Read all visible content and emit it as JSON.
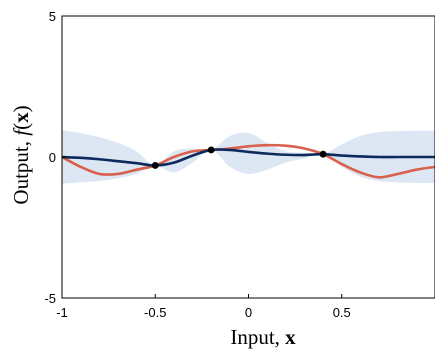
{
  "chart_data": {
    "type": "line",
    "title": "",
    "xlabel": {
      "text": "Input, ",
      "symbol": "x"
    },
    "ylabel": {
      "text": "Output, ",
      "symbol": "f",
      "arg": "x"
    },
    "xlim": [
      -1,
      1
    ],
    "ylim": [
      -5,
      5
    ],
    "xticks": [
      -1,
      -0.5,
      0,
      0.5
    ],
    "xtick_labels": [
      "-1",
      "-0.5",
      "0",
      "0.5"
    ],
    "yticks": [
      -5,
      0,
      5
    ],
    "ytick_labels": [
      "-5",
      "0",
      "5"
    ],
    "grid": false,
    "legend": "none",
    "colors": {
      "mean": "#0d2a5c",
      "sample": "#d9604c",
      "band": "#dce7f3",
      "observation": "#000000"
    },
    "observations": {
      "x": [
        -0.5,
        -0.2,
        0.4
      ],
      "y": [
        -0.3,
        0.25,
        0.1
      ]
    },
    "series": [
      {
        "role": "mean",
        "x": [
          -1.0,
          -0.9,
          -0.8,
          -0.7,
          -0.6,
          -0.5,
          -0.4,
          -0.3,
          -0.2,
          -0.1,
          0.0,
          0.1,
          0.2,
          0.3,
          0.4,
          0.5,
          0.6,
          0.7,
          0.8,
          0.9,
          1.0
        ],
        "y": [
          0.0,
          -0.03,
          -0.08,
          -0.15,
          -0.22,
          -0.3,
          -0.2,
          0.05,
          0.25,
          0.25,
          0.18,
          0.12,
          0.08,
          0.07,
          0.1,
          0.05,
          0.02,
          0.0,
          0.0,
          0.0,
          0.0
        ]
      },
      {
        "role": "sample",
        "x": [
          -1.0,
          -0.9,
          -0.8,
          -0.7,
          -0.6,
          -0.5,
          -0.4,
          -0.3,
          -0.2,
          -0.1,
          0.0,
          0.1,
          0.2,
          0.3,
          0.4,
          0.5,
          0.6,
          0.7,
          0.8,
          0.9,
          1.0
        ],
        "y": [
          0.0,
          -0.35,
          -0.6,
          -0.6,
          -0.45,
          -0.3,
          0.0,
          0.2,
          0.25,
          0.3,
          0.38,
          0.42,
          0.4,
          0.3,
          0.1,
          -0.25,
          -0.55,
          -0.72,
          -0.6,
          -0.45,
          -0.35
        ]
      }
    ],
    "confidence_band": {
      "x": [
        -1.0,
        -0.9,
        -0.8,
        -0.7,
        -0.6,
        -0.5,
        -0.4,
        -0.3,
        -0.2,
        -0.1,
        0.0,
        0.1,
        0.2,
        0.3,
        0.4,
        0.5,
        0.6,
        0.7,
        0.8,
        0.9,
        1.0
      ],
      "upper": [
        0.95,
        0.85,
        0.7,
        0.5,
        0.2,
        -0.3,
        0.2,
        0.3,
        0.25,
        0.75,
        0.85,
        0.5,
        0.2,
        0.15,
        0.1,
        0.45,
        0.75,
        0.88,
        0.92,
        0.93,
        0.93
      ],
      "lower": [
        -0.95,
        -0.9,
        -0.85,
        -0.75,
        -0.6,
        -0.3,
        -0.55,
        -0.2,
        0.25,
        -0.35,
        -0.6,
        -0.45,
        -0.2,
        -0.05,
        0.1,
        -0.35,
        -0.7,
        -0.85,
        -0.9,
        -0.92,
        -0.92
      ]
    }
  }
}
